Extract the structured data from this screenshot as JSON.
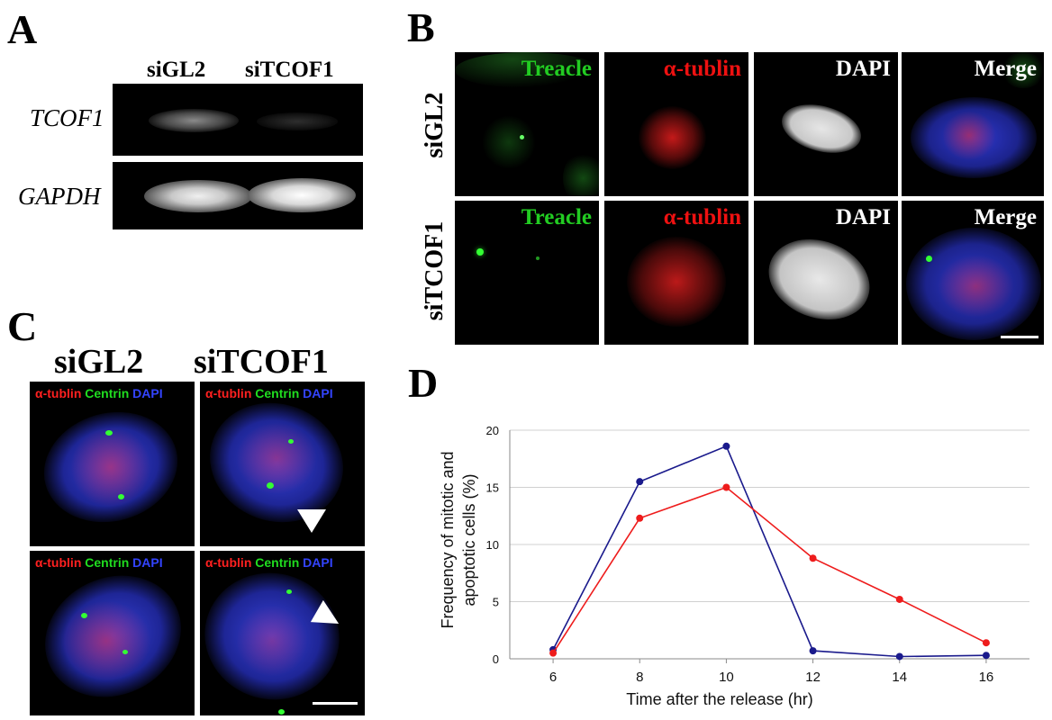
{
  "panels": {
    "A": {
      "letter": "A",
      "lanes": [
        "siGL2",
        "siTCOF1"
      ],
      "genes": [
        "TCOF1",
        "GAPDH"
      ]
    },
    "B": {
      "letter": "B",
      "columns": [
        "Treacle",
        "α-tublin",
        "DAPI",
        "Merge"
      ],
      "rows": [
        "siGL2",
        "siTCOF1"
      ],
      "colors": {
        "treacle": "#22cc22",
        "tublin": "#ee1111",
        "dapi": "#ffffff",
        "merge": "#ffffff"
      }
    },
    "C": {
      "letter": "C",
      "conditions": [
        "siGL2",
        "siTCOF1"
      ],
      "stains": {
        "tublin": "α-tublin",
        "centrin": "Centrin",
        "dapi": "DAPI"
      },
      "colors": {
        "tublin": "#ff2020",
        "centrin": "#20dd20",
        "dapi": "#3344ff"
      }
    },
    "D": {
      "letter": "D"
    }
  },
  "chart_data": {
    "type": "line",
    "x": [
      6,
      8,
      10,
      12,
      14,
      16
    ],
    "series": [
      {
        "color": "#1a1a8c",
        "values": [
          0.8,
          15.5,
          18.6,
          0.7,
          0.2,
          0.3
        ]
      },
      {
        "color": "#ee1c1c",
        "values": [
          0.5,
          12.3,
          15.0,
          8.8,
          5.2,
          1.4
        ]
      }
    ],
    "xlabel": "Time after the release (hr)",
    "ylabel_lines": [
      "Frequency of mitotic and",
      "apoptotic cells (%)"
    ],
    "ylim": [
      0,
      20
    ],
    "yticks": [
      0,
      5,
      10,
      15,
      20
    ],
    "xticks": [
      6,
      8,
      10,
      12,
      14,
      16
    ],
    "grid": true
  }
}
